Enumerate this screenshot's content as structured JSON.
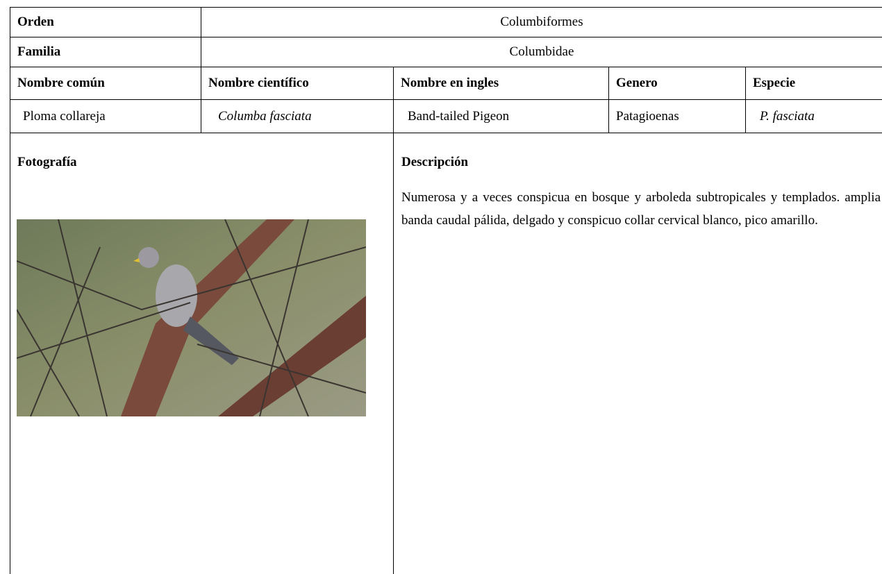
{
  "table": {
    "rows": [
      [
        "Orden",
        "Columbiformes"
      ],
      [
        "Familia",
        "Columbidae"
      ],
      [
        "Nombre común",
        "Nombre científico",
        "Nombre en ingles",
        "Genero",
        "Especie"
      ],
      [
        "Ploma collareja",
        "Columba fasciata",
        "Band-tailed Pigeon",
        "Patagioenas",
        "P. fasciata"
      ]
    ]
  },
  "photo_label": "Fotografía",
  "description": {
    "title": "Descripción",
    "text": "Numerosa y a veces conspicua en bosque y arboleda subtropicales y templados. amplia banda caudal pálida, delgado y conspicuo collar cervical blanco, pico amarillo."
  }
}
